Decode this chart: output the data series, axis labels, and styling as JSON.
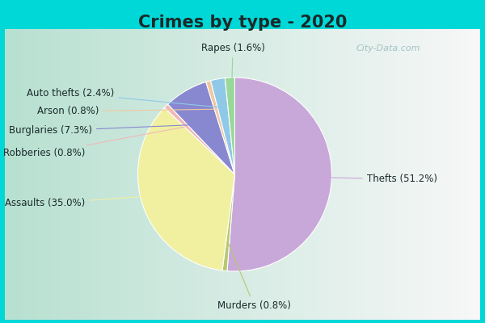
{
  "title": "Crimes by type - 2020",
  "slices": [
    {
      "label": "Thefts",
      "pct": 51.2,
      "color": "#c8a8d8"
    },
    {
      "label": "Murders",
      "pct": 0.8,
      "color": "#b8c870"
    },
    {
      "label": "Assaults",
      "pct": 35.0,
      "color": "#f0f0a0"
    },
    {
      "label": "Robberies",
      "pct": 0.8,
      "color": "#f0b8b8"
    },
    {
      "label": "Burglaries",
      "pct": 7.3,
      "color": "#8888d0"
    },
    {
      "label": "Arson",
      "pct": 0.8,
      "color": "#f0c8a0"
    },
    {
      "label": "Auto thefts",
      "pct": 2.4,
      "color": "#90c8e8"
    },
    {
      "label": "Rapes",
      "pct": 1.6,
      "color": "#98d898"
    }
  ],
  "bg_outer": "#00d8d8",
  "title_color": "#1a2a2a",
  "label_color": "#1a2a2a",
  "title_fontsize": 15,
  "label_fontsize": 8.5,
  "watermark": "City-Data.com",
  "watermark_color": "#90b8b8"
}
